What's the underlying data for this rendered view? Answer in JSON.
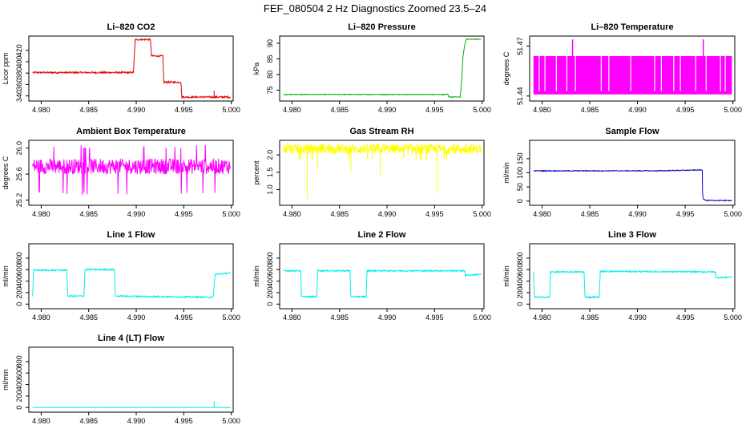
{
  "title": "FEF_080504  2 Hz Diagnostics Zoomed 23.5–24",
  "chart_data": [
    {
      "type": "line",
      "title": "Li–820 CO2",
      "ylabel": "Licor ppm",
      "xlim": [
        4.9787,
        5.0002
      ],
      "ylim": [
        331,
        445
      ],
      "xticks": [
        4.98,
        4.985,
        4.99,
        4.995,
        5.0
      ],
      "xtick_labels": [
        "4.980",
        "4.985",
        "4.990",
        "4.995",
        "5.000"
      ],
      "yticks": [
        340,
        360,
        380,
        400,
        420
      ],
      "ytick_labels": [
        "340",
        "360",
        "380",
        "400",
        "420"
      ],
      "series": [
        {
          "color": "#e00000",
          "noise": 1.5,
          "spikes": [
            [
              4.9982,
              349
            ],
            [
              4.9982,
              338
            ]
          ],
          "x": [
            4.9791,
            4.9897,
            4.9899,
            4.9915,
            4.9916,
            4.9928,
            4.9929,
            4.9947,
            4.9948,
            4.9999
          ],
          "y": [
            381,
            381,
            439,
            439,
            410,
            410,
            364,
            364,
            338,
            338
          ]
        }
      ]
    },
    {
      "type": "line",
      "title": "Li–820 Pressure",
      "ylabel": "kPa",
      "xlim": [
        4.9787,
        5.0002
      ],
      "ylim": [
        71.5,
        92.3
      ],
      "xticks": [
        4.98,
        4.985,
        4.99,
        4.995,
        5.0
      ],
      "xtick_labels": [
        "4.980",
        "4.985",
        "4.990",
        "4.995",
        "5.000"
      ],
      "yticks": [
        75,
        80,
        85,
        90
      ],
      "ytick_labels": [
        "75",
        "80",
        "85",
        "90"
      ],
      "series": [
        {
          "color": "#00b000",
          "noise": 0.12,
          "x": [
            4.9791,
            4.9964,
            4.9965,
            4.9977,
            4.99785,
            4.998,
            4.99815,
            4.9983,
            4.9999
          ],
          "y": [
            73.6,
            73.6,
            72.8,
            72.8,
            78,
            86,
            89,
            91.3,
            91.3
          ]
        }
      ]
    },
    {
      "type": "line",
      "title": "Li–820 Temperature",
      "ylabel": "degrees C",
      "xlim": [
        4.9787,
        5.0002
      ],
      "ylim": [
        51.437,
        51.476
      ],
      "xticks": [
        4.98,
        4.985,
        4.99,
        4.995,
        5.0
      ],
      "xtick_labels": [
        "4.980",
        "4.985",
        "4.990",
        "4.995",
        "5.000"
      ],
      "yticks": [
        51.44,
        51.47
      ],
      "ytick_labels": [
        "51.44",
        "51.47"
      ],
      "quantized": {
        "color": "#ff00ff",
        "x0": 4.9791,
        "x1": 4.9999,
        "low": 51.441,
        "high": 51.464,
        "spikes": [
          4.9832,
          4.9969
        ],
        "spike_top": 51.474,
        "gaps": [
          4.9797,
          4.9803,
          4.9815,
          4.9826,
          4.9835,
          4.9862,
          4.987,
          4.9893,
          4.9918,
          4.9925,
          4.9938,
          4.9945,
          4.9961,
          4.9972,
          4.9987,
          4.9992
        ]
      }
    },
    {
      "type": "line",
      "title": "Ambient Box Temperature",
      "ylabel": "degrees C",
      "xlim": [
        4.9787,
        5.0002
      ],
      "ylim": [
        25.12,
        26.12
      ],
      "xticks": [
        4.98,
        4.985,
        4.99,
        4.995,
        5.0
      ],
      "xtick_labels": [
        "4.980",
        "4.985",
        "4.990",
        "4.995",
        "5.000"
      ],
      "yticks": [
        25.2,
        25.6,
        26.0
      ],
      "ytick_labels": [
        "25.2",
        "25.6",
        "26.0"
      ],
      "noisy": {
        "color": "#ff00ff",
        "x0": 4.9791,
        "x1": 4.9999,
        "center": 25.72,
        "spread": 0.12,
        "outlier_low": 25.28,
        "outlier_high": 26.05
      }
    },
    {
      "type": "line",
      "title": "Gas Stream RH",
      "ylabel": "percent",
      "xlim": [
        4.9787,
        5.0002
      ],
      "ylim": [
        0.55,
        2.42
      ],
      "xticks": [
        4.98,
        4.985,
        4.99,
        4.995,
        5.0
      ],
      "xtick_labels": [
        "4.980",
        "4.985",
        "4.990",
        "4.995",
        "5.000"
      ],
      "yticks": [
        1.0,
        1.5,
        2.0
      ],
      "ytick_labels": [
        "1.0",
        "1.5",
        "2.0"
      ],
      "noisy": {
        "color": "#ffff00",
        "x0": 4.9791,
        "x1": 4.9999,
        "center": 2.17,
        "spread": 0.14,
        "outlier_low": 1.85,
        "outlier_high": 2.35,
        "dips": [
          [
            4.9816,
            0.73
          ],
          [
            4.9953,
            0.88
          ],
          [
            4.9827,
            1.6
          ],
          [
            4.9893,
            1.42
          ],
          [
            4.9862,
            1.55
          ]
        ]
      }
    },
    {
      "type": "line",
      "title": "Sample Flow",
      "ylabel": "ml/min",
      "xlim": [
        4.9787,
        5.0002
      ],
      "ylim": [
        -15,
        215
      ],
      "xticks": [
        4.98,
        4.985,
        4.99,
        4.995,
        5.0
      ],
      "xtick_labels": [
        "4.980",
        "4.985",
        "4.990",
        "4.995",
        "5.000"
      ],
      "yticks": [
        0,
        50,
        100,
        150
      ],
      "ytick_labels": [
        "0",
        "50",
        "100",
        "150"
      ],
      "series": [
        {
          "color": "#0000cc",
          "noise": 1.5,
          "x": [
            4.9791,
            4.992,
            4.9968,
            4.99682,
            4.9969,
            4.9972,
            4.9999
          ],
          "y": [
            107,
            107,
            110,
            30,
            8,
            2,
            2
          ]
        }
      ]
    },
    {
      "type": "line",
      "title": "Line 1 Flow",
      "ylabel": "ml/min",
      "xlim": [
        4.9787,
        5.0002
      ],
      "ylim": [
        -80,
        1050
      ],
      "xticks": [
        4.98,
        4.985,
        4.99,
        4.995,
        5.0
      ],
      "xtick_labels": [
        "4.980",
        "4.985",
        "4.990",
        "4.995",
        "5.000"
      ],
      "yticks": [
        0,
        200,
        400,
        600,
        800
      ],
      "ytick_labels": [
        "0",
        "200",
        "400",
        "600",
        "800"
      ],
      "series": [
        {
          "color": "#00eeee",
          "noise": 12,
          "x": [
            4.9791,
            4.9792,
            4.9827,
            4.9828,
            4.9845,
            4.9846,
            4.9877,
            4.9878,
            4.9981,
            4.9983,
            4.9999
          ],
          "y": [
            140,
            590,
            590,
            140,
            140,
            600,
            600,
            140,
            120,
            520,
            540
          ]
        }
      ]
    },
    {
      "type": "line",
      "title": "Line 2 Flow",
      "ylabel": "ml/min",
      "xlim": [
        4.9787,
        5.0002
      ],
      "ylim": [
        -80,
        1050
      ],
      "xticks": [
        4.98,
        4.985,
        4.99,
        4.995,
        5.0
      ],
      "xtick_labels": [
        "4.980",
        "4.985",
        "4.990",
        "4.995",
        "5.000"
      ],
      "yticks": [
        0,
        200,
        400,
        600,
        800
      ],
      "ytick_labels": [
        "0",
        "200",
        "400",
        "600",
        "800"
      ],
      "series": [
        {
          "color": "#00eeee",
          "noise": 12,
          "x": [
            4.9791,
            4.9809,
            4.981,
            4.9826,
            4.9827,
            4.9861,
            4.9862,
            4.9878,
            4.9879,
            4.9982,
            4.99822,
            4.9999
          ],
          "y": [
            580,
            580,
            130,
            130,
            580,
            580,
            130,
            130,
            580,
            580,
            500,
            520
          ]
        }
      ]
    },
    {
      "type": "line",
      "title": "Line 3 Flow",
      "ylabel": "ml/min",
      "xlim": [
        4.9787,
        5.0002
      ],
      "ylim": [
        -80,
        1050
      ],
      "xticks": [
        4.98,
        4.985,
        4.99,
        4.995,
        5.0
      ],
      "xtick_labels": [
        "4.980",
        "4.985",
        "4.990",
        "4.995",
        "5.000"
      ],
      "yticks": [
        0,
        200,
        400,
        600,
        800
      ],
      "ytick_labels": [
        "0",
        "200",
        "400",
        "600",
        "800"
      ],
      "series": [
        {
          "color": "#00eeee",
          "noise": 12,
          "x": [
            4.9791,
            4.9792,
            4.9808,
            4.9809,
            4.9844,
            4.9845,
            4.986,
            4.9861,
            4.9982,
            4.99822,
            4.9999
          ],
          "y": [
            550,
            120,
            120,
            560,
            560,
            120,
            120,
            570,
            560,
            460,
            470
          ]
        }
      ]
    },
    {
      "type": "line",
      "title": "Line 4 (LT) Flow",
      "ylabel": "ml/min",
      "xlim": [
        4.9787,
        5.0002
      ],
      "ylim": [
        -80,
        1050
      ],
      "xticks": [
        4.98,
        4.985,
        4.99,
        4.995,
        5.0
      ],
      "xtick_labels": [
        "4.980",
        "4.985",
        "4.990",
        "4.995",
        "5.000"
      ],
      "yticks": [
        0,
        200,
        400,
        600,
        800
      ],
      "ytick_labels": [
        "0",
        "200",
        "400",
        "600",
        "800"
      ],
      "series": [
        {
          "color": "#00eeee",
          "noise": 3,
          "spikes": [
            [
              4.9982,
              110
            ]
          ],
          "x": [
            4.9791,
            4.9999
          ],
          "y": [
            2,
            2
          ]
        }
      ]
    }
  ]
}
